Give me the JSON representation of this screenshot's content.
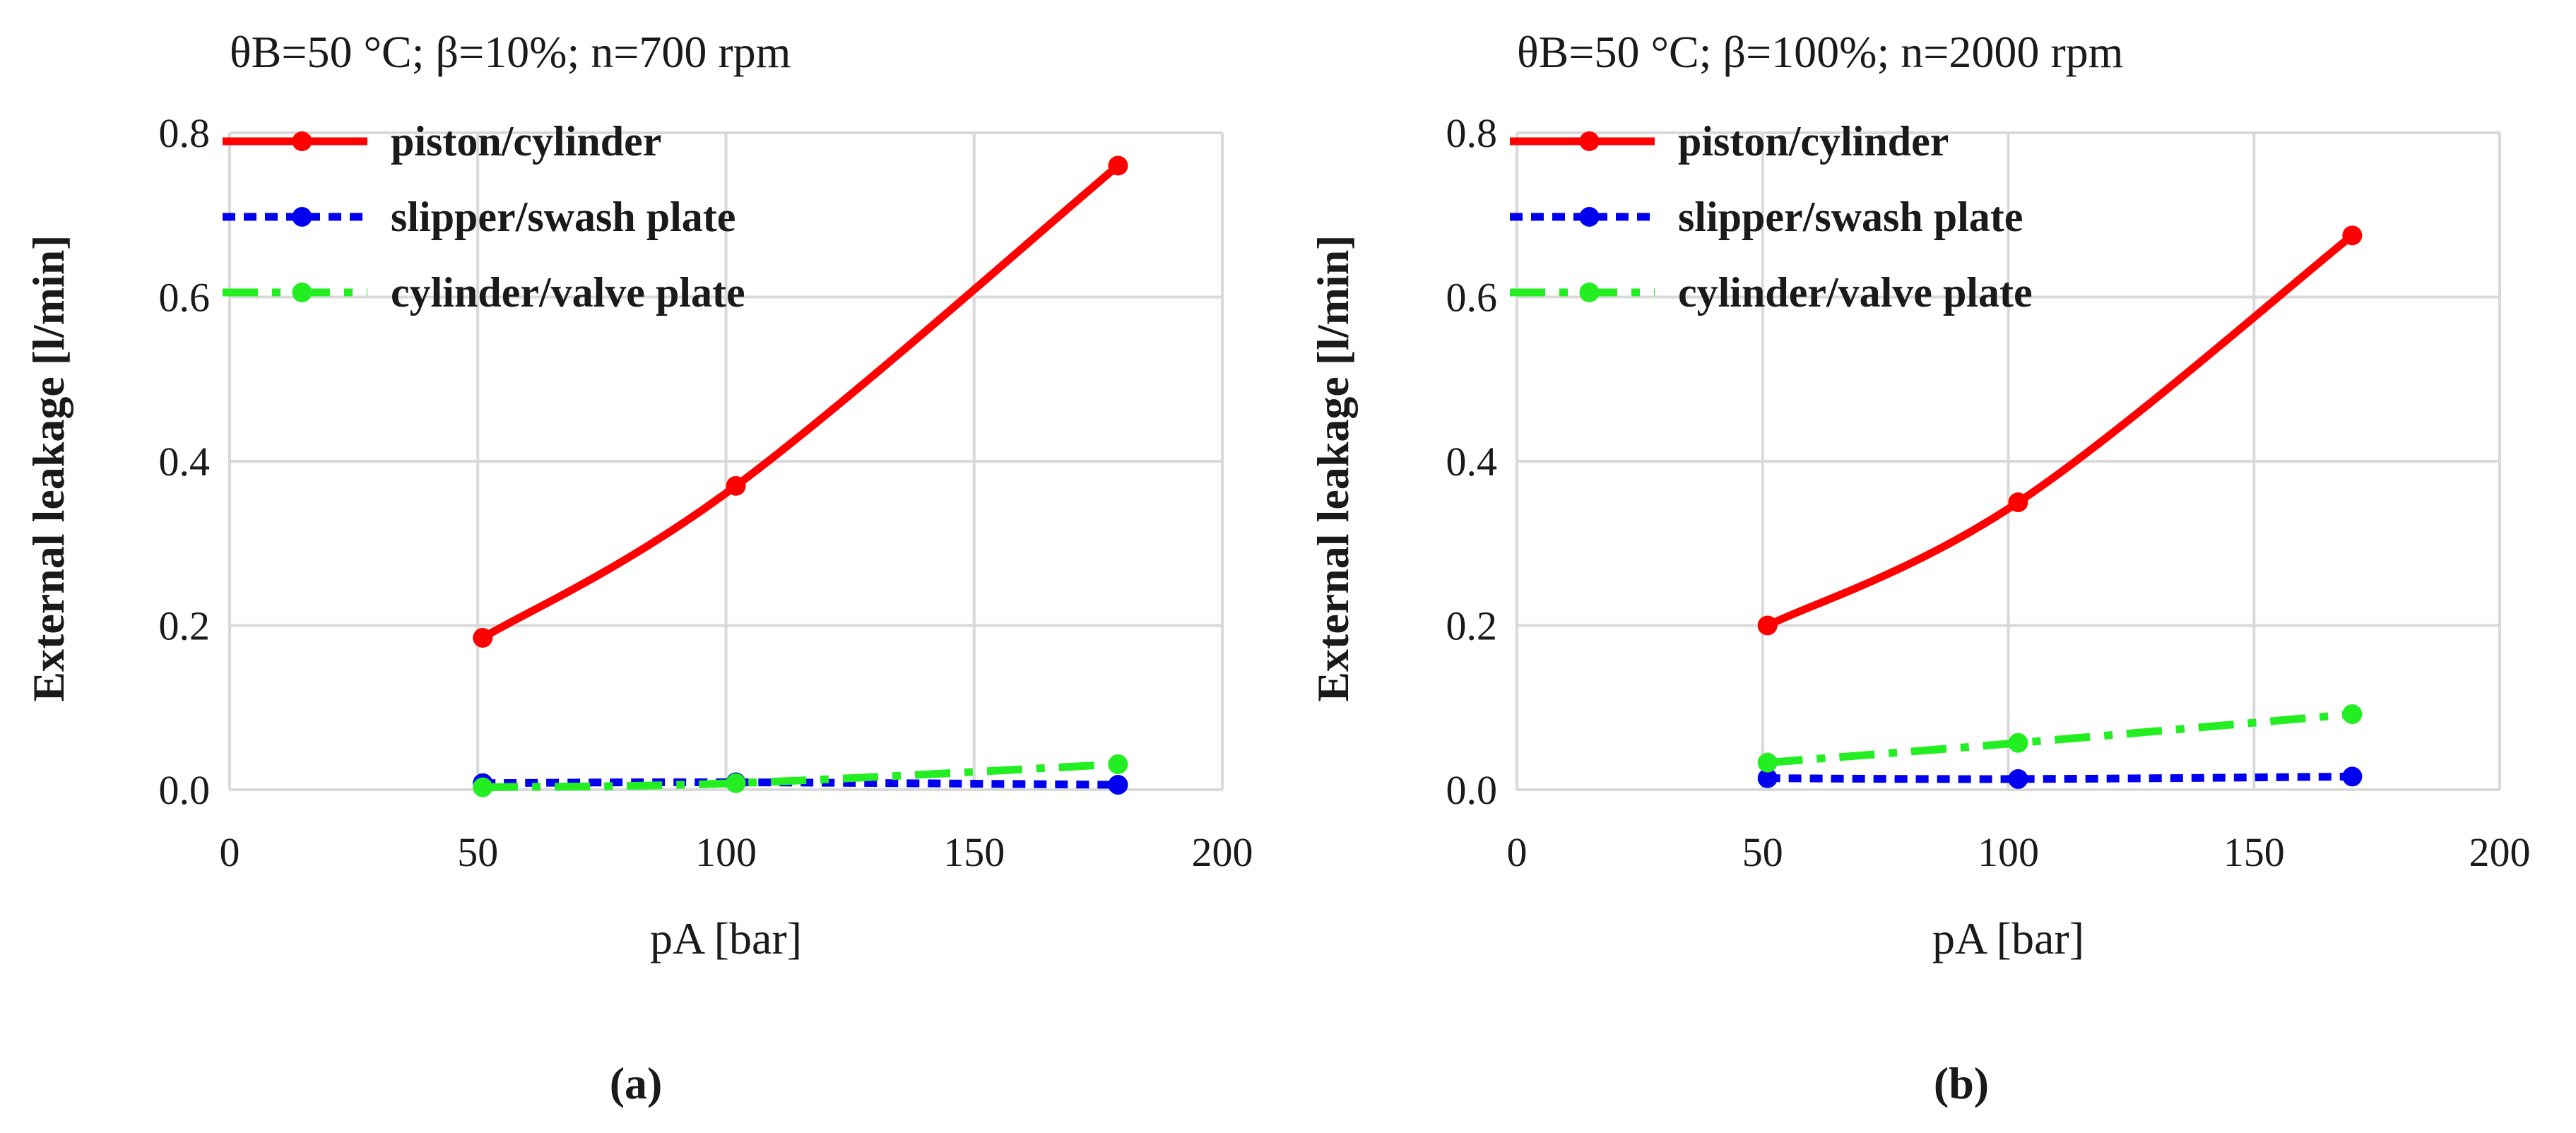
{
  "chart_data": [
    {
      "type": "line",
      "panel_label": "(a)",
      "title": "θB=50 °C; β=10%; n=700 rpm",
      "xlabel": "pA [bar]",
      "ylabel": "External leakage  [l/min]",
      "xlim": [
        0,
        200
      ],
      "ylim": [
        0,
        0.8
      ],
      "xticks": [
        "0",
        "50",
        "100",
        "150",
        "200"
      ],
      "yticks": [
        "0.0",
        "0.2",
        "0.4",
        "0.6",
        "0.8"
      ],
      "grid": true,
      "legend_position": "top-left",
      "series": [
        {
          "name": "piston/cylinder",
          "style": "solid",
          "color": "#ff0000",
          "x": [
            51,
            102,
            179
          ],
          "y": [
            0.185,
            0.37,
            0.76
          ]
        },
        {
          "name": "slipper/swash plate",
          "style": "dashed",
          "color": "#0000ee",
          "x": [
            51,
            102,
            179
          ],
          "y": [
            0.008,
            0.009,
            0.006
          ]
        },
        {
          "name": "cylinder/valve plate",
          "style": "dashdot",
          "color": "#22ee22",
          "x": [
            51,
            102,
            179
          ],
          "y": [
            0.003,
            0.008,
            0.031
          ]
        }
      ]
    },
    {
      "type": "line",
      "panel_label": "(b)",
      "title": "θB=50 °C; β=100%; n=2000 rpm",
      "xlabel": "pA [bar]",
      "ylabel": "External leakage  [l/min]",
      "xlim": [
        0,
        200
      ],
      "ylim": [
        0,
        0.8
      ],
      "xticks": [
        "0",
        "50",
        "100",
        "150",
        "200"
      ],
      "yticks": [
        "0.0",
        "0.2",
        "0.4",
        "0.6",
        "0.8"
      ],
      "grid": true,
      "legend_position": "top-left",
      "series": [
        {
          "name": "piston/cylinder",
          "style": "solid",
          "color": "#ff0000",
          "x": [
            51,
            102,
            170
          ],
          "y": [
            0.2,
            0.35,
            0.675
          ]
        },
        {
          "name": "slipper/swash plate",
          "style": "dashed",
          "color": "#0000ee",
          "x": [
            51,
            102,
            170
          ],
          "y": [
            0.014,
            0.013,
            0.016
          ]
        },
        {
          "name": "cylinder/valve plate",
          "style": "dashdot",
          "color": "#22ee22",
          "x": [
            51,
            102,
            170
          ],
          "y": [
            0.033,
            0.057,
            0.092
          ]
        }
      ]
    }
  ]
}
